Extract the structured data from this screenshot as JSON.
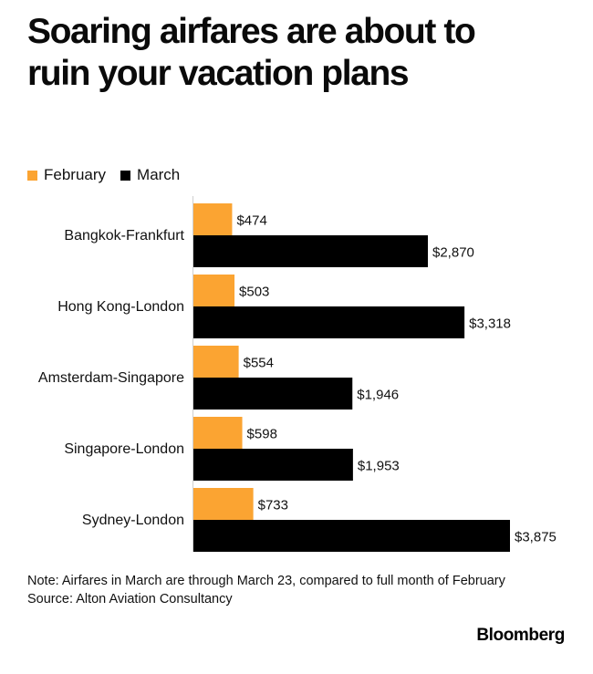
{
  "title": "Soaring airfares are about to ruin your vacation plans",
  "legend": [
    {
      "label": "February",
      "color": "#fba432"
    },
    {
      "label": "March",
      "color": "#000000"
    }
  ],
  "note": "Note: Airfares in March are through March 23, compared to full month of February",
  "source": "Source: Alton Aviation Consultancy",
  "brand": "Bloomberg",
  "chart_data": {
    "type": "bar",
    "orientation": "horizontal",
    "categories": [
      "Bangkok-Frankfurt",
      "Hong Kong-London",
      "Amsterdam-Singapore",
      "Singapore-London",
      "Sydney-London"
    ],
    "series": [
      {
        "name": "February",
        "color": "#fba432",
        "values": [
          474,
          503,
          554,
          598,
          733
        ],
        "labels": [
          "$474",
          "$503",
          "$554",
          "$598",
          "$733"
        ]
      },
      {
        "name": "March",
        "color": "#000000",
        "values": [
          2870,
          3318,
          1946,
          1953,
          3875
        ],
        "labels": [
          "$2,870",
          "$3,318",
          "$1,946",
          "$1,953",
          "$3,875"
        ]
      }
    ],
    "xlim": [
      0,
      3875
    ],
    "legend_position": "top-left",
    "grid": false
  }
}
